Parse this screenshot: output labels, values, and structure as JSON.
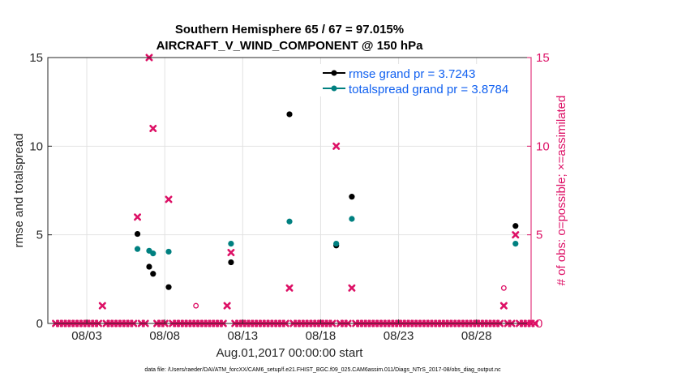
{
  "chart_data": {
    "type": "scatter",
    "title_line1": "Southern Hemisphere 65 / 67 = 97.015%",
    "title_line2": "AIRCRAFT_V_WIND_COMPONENT @ 150 hPa",
    "xlabel": "Aug.01,2017 00:00:00 start",
    "ylabel_left": "rmse and totalspread",
    "ylabel_right": "# of obs: o=possible; ×=assimilated",
    "xlim": [
      0.5,
      31.5
    ],
    "ylim": [
      0,
      15
    ],
    "x_ticks": [
      {
        "x": 3,
        "label": "08/03"
      },
      {
        "x": 8,
        "label": "08/08"
      },
      {
        "x": 13,
        "label": "08/13"
      },
      {
        "x": 18,
        "label": "08/18"
      },
      {
        "x": 23,
        "label": "08/23"
      },
      {
        "x": 28,
        "label": "08/28"
      }
    ],
    "y_ticks": [
      {
        "y": 0,
        "label": "0"
      },
      {
        "y": 5,
        "label": "5"
      },
      {
        "y": 10,
        "label": "10"
      },
      {
        "y": 15,
        "label": "15"
      }
    ],
    "colors": {
      "rmse": "#000000",
      "spread": "#008080",
      "obs": "#dd1166",
      "legend_text": "#1060f0"
    },
    "series": [
      {
        "name": "rmse grand pr = 3.7243",
        "key": "rmse",
        "points": [
          [
            6.25,
            5.05
          ],
          [
            7.0,
            3.2
          ],
          [
            7.25,
            2.8
          ],
          [
            8.25,
            2.05
          ],
          [
            12.25,
            3.45
          ],
          [
            16.0,
            11.8
          ],
          [
            19.0,
            4.4
          ],
          [
            20.0,
            7.15
          ],
          [
            30.5,
            5.5
          ]
        ]
      },
      {
        "name": "totalspread grand pr = 3.8784",
        "key": "spread",
        "points": [
          [
            6.25,
            4.2
          ],
          [
            7.0,
            4.1
          ],
          [
            7.25,
            3.95
          ],
          [
            8.25,
            4.05
          ],
          [
            12.25,
            4.5
          ],
          [
            16.0,
            5.75
          ],
          [
            19.0,
            4.5
          ],
          [
            20.0,
            5.9
          ],
          [
            30.5,
            4.5
          ]
        ]
      }
    ],
    "obs_possible": [
      [
        10.0,
        1
      ],
      [
        29.75,
        2
      ]
    ],
    "obs_assimilated_nonzero": [
      [
        4.0,
        1
      ],
      [
        6.25,
        6
      ],
      [
        7.0,
        15
      ],
      [
        7.25,
        11
      ],
      [
        8.25,
        7
      ],
      [
        12.0,
        1
      ],
      [
        12.25,
        4
      ],
      [
        16.0,
        2
      ],
      [
        19.0,
        10
      ],
      [
        20.0,
        2
      ],
      [
        29.75,
        1
      ],
      [
        30.5,
        5
      ]
    ],
    "obs_zero_step": 0.25,
    "footer": "data file: /Users/raeder/DAI/ATM_forcXX/CAM6_setup/f.e21.FHIST_BGC.f09_025.CAM6assim.011/Diags_NTrS_2017-08/obs_diag_output.nc"
  }
}
